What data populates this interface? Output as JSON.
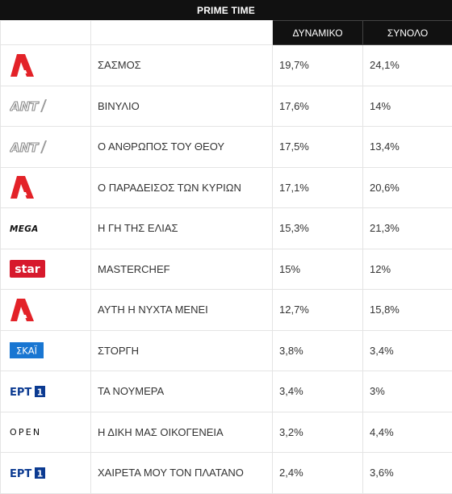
{
  "header": {
    "title": "PRIME TIME"
  },
  "table": {
    "columns": [
      "",
      "",
      "ΔΥΝΑΜΙΚΟ",
      "ΣΥΝΟΛΟ"
    ],
    "rows": [
      {
        "channel": "alpha-logo",
        "show": "ΣΑΣΜΟΣ",
        "dynamic": "19,7%",
        "total": "24,1%"
      },
      {
        "channel": "ant1-logo",
        "show": "ΒΙΝΥΛΙΟ",
        "dynamic": "17,6%",
        "total": "14%"
      },
      {
        "channel": "ant1-logo",
        "show": "Ο ΑΝΘΡΩΠΟΣ ΤΟΥ ΘΕΟΥ",
        "dynamic": "17,5%",
        "total": "13,4%"
      },
      {
        "channel": "alpha-logo",
        "show": "Ο ΠΑΡΑΔΕΙΣΟΣ ΤΩΝ ΚΥΡΙΩΝ",
        "dynamic": "17,1%",
        "total": "20,6%"
      },
      {
        "channel": "mega-logo",
        "show": "Η ΓΗ ΤΗΣ ΕΛΙΑΣ",
        "dynamic": "15,3%",
        "total": "21,3%"
      },
      {
        "channel": "star-logo",
        "show": "MASTERCHEF",
        "dynamic": "15%",
        "total": "12%"
      },
      {
        "channel": "alpha-logo",
        "show": "ΑΥΤΗ Η ΝΥΧΤΑ ΜΕΝΕΙ",
        "dynamic": "12,7%",
        "total": "15,8%"
      },
      {
        "channel": "skai-logo",
        "show": "ΣΤΟΡΓΗ",
        "dynamic": "3,8%",
        "total": "3,4%"
      },
      {
        "channel": "ert1-logo",
        "show": "ΤΑ ΝΟΥΜΕΡΑ",
        "dynamic": "3,4%",
        "total": "3%"
      },
      {
        "channel": "open-logo",
        "show": "Η ΔΙΚΗ ΜΑΣ ΟΙΚΟΓΕΝΕΙΑ",
        "dynamic": "3,2%",
        "total": "4,4%"
      },
      {
        "channel": "ert1-logo",
        "show": "ΧΑΙΡΕΤΑ ΜΟΥ ΤΟΝ ΠΛΑΤΑΝΟ",
        "dynamic": "2,4%",
        "total": "3,6%"
      }
    ]
  },
  "logos": {
    "ant1": "ANT",
    "mega": "MEGA",
    "star": "star",
    "skai": "ΣΚΑΪ",
    "ert": "ΕΡΤ",
    "ert_num": "1",
    "open": "OPEN"
  },
  "colors": {
    "alpha_red": "#e32228",
    "star_red": "#d7192c",
    "skai_blue": "#1976d2",
    "ert_blue": "#0b3a91",
    "header_bg": "#111111"
  }
}
